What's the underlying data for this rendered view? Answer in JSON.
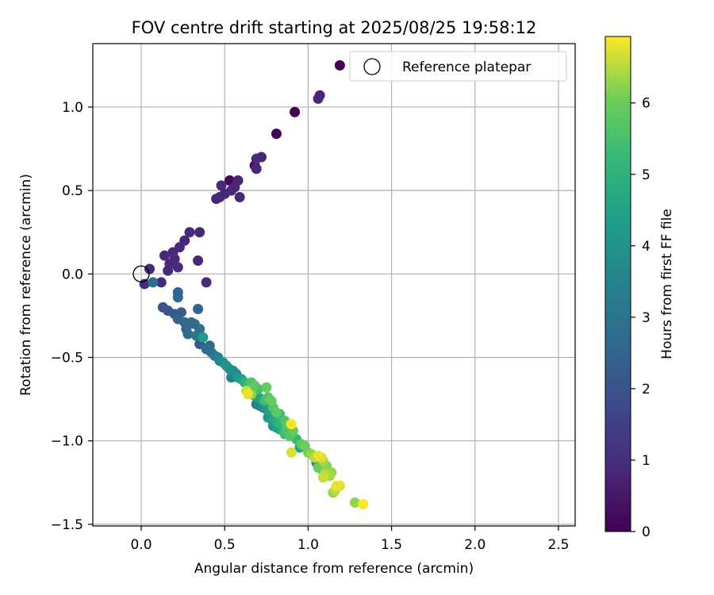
{
  "chart_data": {
    "type": "scatter",
    "title": "FOV centre drift starting at 2025/08/25 19:58:12",
    "xlabel": "Angular distance from reference (arcmin)",
    "ylabel": "Rotation from reference (arcmin)",
    "xlim": [
      -0.29,
      2.6
    ],
    "ylim": [
      -1.51,
      1.38
    ],
    "xticks": [
      0.0,
      0.5,
      1.0,
      1.5,
      2.0,
      2.5
    ],
    "xtick_labels": [
      "0.0",
      "0.5",
      "1.0",
      "1.5",
      "2.0",
      "2.5"
    ],
    "yticks": [
      -1.5,
      -1.0,
      -0.5,
      0.0,
      0.5,
      1.0
    ],
    "ytick_labels": [
      "−1.5",
      "−1.0",
      "−0.5",
      "0.0",
      "0.5",
      "1.0"
    ],
    "grid": true,
    "legend": {
      "placement": "top-right",
      "entries": [
        "Reference platepar"
      ]
    },
    "reference_point": {
      "x": 0.0,
      "y": 0.0
    },
    "colorbar": {
      "label": "Hours from first FF file",
      "colormap": "viridis",
      "range": [
        0,
        6.93
      ],
      "ticks": [
        0,
        1,
        2,
        3,
        4,
        5,
        6
      ],
      "tick_labels": [
        "0",
        "1",
        "2",
        "3",
        "4",
        "5",
        "6"
      ]
    },
    "points": [
      {
        "x": 1.19,
        "y": 1.25,
        "c": 0.02
      },
      {
        "x": 1.07,
        "y": 1.07,
        "c": 0.8
      },
      {
        "x": 1.06,
        "y": 1.05,
        "c": 0.85
      },
      {
        "x": 0.92,
        "y": 0.97,
        "c": 0.05
      },
      {
        "x": 0.81,
        "y": 0.84,
        "c": 0.03
      },
      {
        "x": 0.72,
        "y": 0.7,
        "c": 0.85
      },
      {
        "x": 0.69,
        "y": 0.69,
        "c": 0.9
      },
      {
        "x": 0.68,
        "y": 0.65,
        "c": 0.25
      },
      {
        "x": 0.69,
        "y": 0.63,
        "c": 0.85
      },
      {
        "x": 0.58,
        "y": 0.56,
        "c": 0.85
      },
      {
        "x": 0.53,
        "y": 0.56,
        "c": 0.15
      },
      {
        "x": 0.48,
        "y": 0.53,
        "c": 0.95
      },
      {
        "x": 0.54,
        "y": 0.5,
        "c": 0.9
      },
      {
        "x": 0.56,
        "y": 0.52,
        "c": 0.85
      },
      {
        "x": 0.5,
        "y": 0.48,
        "c": 0.9
      },
      {
        "x": 0.47,
        "y": 0.46,
        "c": 0.9
      },
      {
        "x": 0.59,
        "y": 0.46,
        "c": 0.9
      },
      {
        "x": 0.45,
        "y": 0.45,
        "c": 0.85
      },
      {
        "x": 0.29,
        "y": 0.25,
        "c": 0.95
      },
      {
        "x": 0.35,
        "y": 0.25,
        "c": 0.9
      },
      {
        "x": 0.26,
        "y": 0.2,
        "c": 0.9
      },
      {
        "x": 0.23,
        "y": 0.16,
        "c": 0.9
      },
      {
        "x": 0.19,
        "y": 0.13,
        "c": 0.95
      },
      {
        "x": 0.14,
        "y": 0.11,
        "c": 0.9
      },
      {
        "x": 0.2,
        "y": 0.09,
        "c": 0.9
      },
      {
        "x": 0.17,
        "y": 0.06,
        "c": 0.95
      },
      {
        "x": 0.22,
        "y": 0.04,
        "c": 0.95
      },
      {
        "x": 0.34,
        "y": 0.08,
        "c": 0.9
      },
      {
        "x": 0.16,
        "y": 0.02,
        "c": 0.9
      },
      {
        "x": 0.05,
        "y": 0.03,
        "c": 0.9
      },
      {
        "x": 0.02,
        "y": -0.06,
        "c": 0.95
      },
      {
        "x": 0.12,
        "y": -0.05,
        "c": 1.0
      },
      {
        "x": 0.39,
        "y": -0.05,
        "c": 0.95
      },
      {
        "x": 0.07,
        "y": -0.05,
        "c": 2.8
      },
      {
        "x": 0.22,
        "y": -0.11,
        "c": 2.4
      },
      {
        "x": 0.22,
        "y": -0.14,
        "c": 2.6
      },
      {
        "x": 0.13,
        "y": -0.2,
        "c": 2.0
      },
      {
        "x": 0.16,
        "y": -0.22,
        "c": 2.1
      },
      {
        "x": 0.2,
        "y": -0.24,
        "c": 2.2
      },
      {
        "x": 0.24,
        "y": -0.23,
        "c": 2.3
      },
      {
        "x": 0.34,
        "y": -0.21,
        "c": 2.5
      },
      {
        "x": 0.22,
        "y": -0.27,
        "c": 2.4
      },
      {
        "x": 0.26,
        "y": -0.29,
        "c": 2.6
      },
      {
        "x": 0.3,
        "y": -0.29,
        "c": 2.7
      },
      {
        "x": 0.32,
        "y": -0.3,
        "c": 2.6
      },
      {
        "x": 0.27,
        "y": -0.33,
        "c": 2.5
      },
      {
        "x": 0.35,
        "y": -0.33,
        "c": 2.8
      },
      {
        "x": 0.28,
        "y": -0.36,
        "c": 2.7
      },
      {
        "x": 0.33,
        "y": -0.37,
        "c": 3.0
      },
      {
        "x": 0.37,
        "y": -0.38,
        "c": 4.2
      },
      {
        "x": 0.35,
        "y": -0.42,
        "c": 2.2
      },
      {
        "x": 0.41,
        "y": -0.43,
        "c": 2.6
      },
      {
        "x": 0.39,
        "y": -0.45,
        "c": 2.7
      },
      {
        "x": 0.42,
        "y": -0.47,
        "c": 2.9
      },
      {
        "x": 0.44,
        "y": -0.49,
        "c": 3.1
      },
      {
        "x": 0.46,
        "y": -0.5,
        "c": 3.4
      },
      {
        "x": 0.47,
        "y": -0.52,
        "c": 3.6
      },
      {
        "x": 0.49,
        "y": -0.53,
        "c": 3.8
      },
      {
        "x": 0.51,
        "y": -0.55,
        "c": 4.0
      },
      {
        "x": 0.53,
        "y": -0.57,
        "c": 3.9
      },
      {
        "x": 0.55,
        "y": -0.58,
        "c": 3.7
      },
      {
        "x": 0.57,
        "y": -0.6,
        "c": 3.6
      },
      {
        "x": 0.54,
        "y": -0.62,
        "c": 3.4
      },
      {
        "x": 0.58,
        "y": -0.62,
        "c": 4.2
      },
      {
        "x": 0.6,
        "y": -0.63,
        "c": 4.4
      },
      {
        "x": 0.62,
        "y": -0.65,
        "c": 4.8
      },
      {
        "x": 0.64,
        "y": -0.66,
        "c": 5.2
      },
      {
        "x": 0.66,
        "y": -0.65,
        "c": 5.6
      },
      {
        "x": 0.68,
        "y": -0.67,
        "c": 5.8
      },
      {
        "x": 0.7,
        "y": -0.69,
        "c": 5.4
      },
      {
        "x": 0.75,
        "y": -0.68,
        "c": 5.9
      },
      {
        "x": 0.63,
        "y": -0.7,
        "c": 6.6
      },
      {
        "x": 0.64,
        "y": -0.72,
        "c": 6.8
      },
      {
        "x": 0.66,
        "y": -0.72,
        "c": 6.2
      },
      {
        "x": 0.68,
        "y": -0.73,
        "c": 4.6
      },
      {
        "x": 0.7,
        "y": -0.74,
        "c": 4.2
      },
      {
        "x": 0.72,
        "y": -0.75,
        "c": 4.4
      },
      {
        "x": 0.74,
        "y": -0.76,
        "c": 5.4
      },
      {
        "x": 0.76,
        "y": -0.74,
        "c": 5.7
      },
      {
        "x": 0.78,
        "y": -0.76,
        "c": 5.9
      },
      {
        "x": 0.69,
        "y": -0.78,
        "c": 3.2
      },
      {
        "x": 0.71,
        "y": -0.79,
        "c": 3.5
      },
      {
        "x": 0.73,
        "y": -0.8,
        "c": 3.8
      },
      {
        "x": 0.75,
        "y": -0.81,
        "c": 4.1
      },
      {
        "x": 0.77,
        "y": -0.82,
        "c": 4.5
      },
      {
        "x": 0.79,
        "y": -0.8,
        "c": 5.6
      },
      {
        "x": 0.81,
        "y": -0.83,
        "c": 5.8
      },
      {
        "x": 0.83,
        "y": -0.84,
        "c": 5.3
      },
      {
        "x": 0.76,
        "y": -0.86,
        "c": 4.0
      },
      {
        "x": 0.78,
        "y": -0.87,
        "c": 4.3
      },
      {
        "x": 0.8,
        "y": -0.88,
        "c": 4.6
      },
      {
        "x": 0.82,
        "y": -0.89,
        "c": 4.9
      },
      {
        "x": 0.84,
        "y": -0.9,
        "c": 5.1
      },
      {
        "x": 0.86,
        "y": -0.88,
        "c": 5.6
      },
      {
        "x": 0.88,
        "y": -0.9,
        "c": 5.9
      },
      {
        "x": 0.79,
        "y": -0.91,
        "c": 4.1
      },
      {
        "x": 0.81,
        "y": -0.92,
        "c": 4.3
      },
      {
        "x": 0.83,
        "y": -0.93,
        "c": 4.5
      },
      {
        "x": 0.85,
        "y": -0.94,
        "c": 4.8
      },
      {
        "x": 0.87,
        "y": -0.93,
        "c": 5.5
      },
      {
        "x": 0.9,
        "y": -0.9,
        "c": 6.9
      },
      {
        "x": 0.91,
        "y": -0.94,
        "c": 5.9
      },
      {
        "x": 0.86,
        "y": -0.96,
        "c": 5.4
      },
      {
        "x": 0.89,
        "y": -0.97,
        "c": 5.7
      },
      {
        "x": 0.93,
        "y": -0.99,
        "c": 5.2
      },
      {
        "x": 0.96,
        "y": -1.02,
        "c": 5.8
      },
      {
        "x": 0.98,
        "y": -1.03,
        "c": 6.0
      },
      {
        "x": 0.95,
        "y": -1.04,
        "c": 4.4
      },
      {
        "x": 0.9,
        "y": -1.07,
        "c": 6.7
      },
      {
        "x": 1.0,
        "y": -1.07,
        "c": 6.1
      },
      {
        "x": 1.02,
        "y": -1.08,
        "c": 6.3
      },
      {
        "x": 1.04,
        "y": -1.1,
        "c": 6.5
      },
      {
        "x": 1.06,
        "y": -1.09,
        "c": 6.8
      },
      {
        "x": 1.08,
        "y": -1.1,
        "c": 6.7
      },
      {
        "x": 1.05,
        "y": -1.13,
        "c": 3.4
      },
      {
        "x": 1.07,
        "y": -1.14,
        "c": 3.6
      },
      {
        "x": 1.09,
        "y": -1.12,
        "c": 6.4
      },
      {
        "x": 1.11,
        "y": -1.15,
        "c": 6.2
      },
      {
        "x": 1.06,
        "y": -1.16,
        "c": 6.0
      },
      {
        "x": 1.08,
        "y": -1.17,
        "c": 5.9
      },
      {
        "x": 1.12,
        "y": -1.18,
        "c": 6.1
      },
      {
        "x": 1.14,
        "y": -1.19,
        "c": 6.3
      },
      {
        "x": 1.1,
        "y": -1.2,
        "c": 6.5
      },
      {
        "x": 1.13,
        "y": -1.21,
        "c": 6.4
      },
      {
        "x": 1.09,
        "y": -1.22,
        "c": 6.6
      },
      {
        "x": 1.17,
        "y": -1.27,
        "c": 6.8
      },
      {
        "x": 1.19,
        "y": -1.27,
        "c": 6.7
      },
      {
        "x": 1.16,
        "y": -1.3,
        "c": 6.5
      },
      {
        "x": 1.15,
        "y": -1.31,
        "c": 6.2
      },
      {
        "x": 1.28,
        "y": -1.37,
        "c": 6.3
      },
      {
        "x": 1.33,
        "y": -1.38,
        "c": 6.9
      }
    ]
  }
}
